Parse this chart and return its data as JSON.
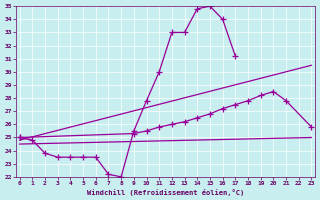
{
  "bg_color": "#c8eef0",
  "line_color": "#990099",
  "grid_color": "#ffffff",
  "xlabel": "Windchill (Refroidissement éolien,°C)",
  "xlim": [
    -0.3,
    23.3
  ],
  "ylim": [
    22,
    35
  ],
  "yticks": [
    22,
    23,
    24,
    25,
    26,
    27,
    28,
    29,
    30,
    31,
    32,
    33,
    34,
    35
  ],
  "xticks": [
    0,
    1,
    2,
    3,
    4,
    5,
    6,
    7,
    8,
    9,
    10,
    11,
    12,
    13,
    14,
    15,
    16,
    17,
    18,
    19,
    20,
    21,
    22,
    23
  ],
  "line1_x": [
    0,
    1,
    2,
    3,
    4,
    5,
    6,
    7,
    8,
    9,
    10,
    11,
    12,
    13,
    14,
    15,
    16,
    17
  ],
  "line1_y": [
    25.0,
    24.8,
    23.8,
    23.5,
    23.5,
    23.5,
    23.5,
    22.2,
    22.0,
    25.5,
    27.8,
    30.0,
    33.0,
    33.0,
    34.8,
    35.0,
    34.0,
    31.2
  ],
  "line2_x": [
    0,
    23
  ],
  "line2_y": [
    24.5,
    25.0
  ],
  "line3_x": [
    0,
    23
  ],
  "line3_y": [
    24.8,
    30.5
  ],
  "line4_x": [
    0,
    9,
    10,
    11,
    12,
    13,
    14,
    15,
    16,
    17,
    18,
    19,
    20,
    21,
    23
  ],
  "line4_y": [
    25.0,
    25.3,
    25.5,
    25.8,
    26.0,
    26.2,
    26.5,
    26.8,
    27.2,
    27.5,
    27.8,
    28.2,
    28.5,
    27.8,
    25.8
  ]
}
